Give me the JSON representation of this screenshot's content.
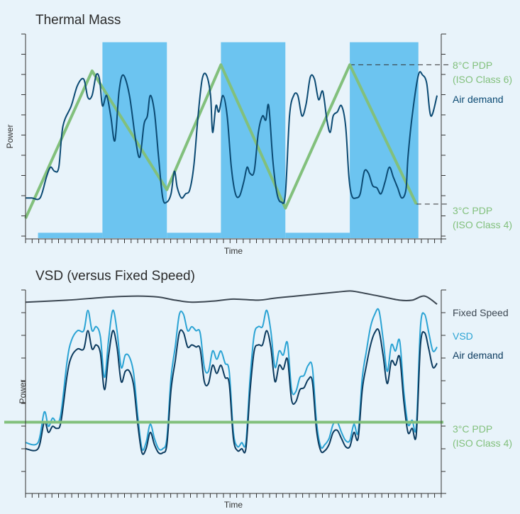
{
  "chart_data": [
    {
      "type": "area",
      "title": "Thermal Mass",
      "xlabel": "Time",
      "ylabel": "Power",
      "x_range": [
        0,
        100
      ],
      "y_range": [
        0,
        100
      ],
      "colors": {
        "blocks": "#6cc4f0",
        "air_demand": "#0b4a73",
        "dryer": "#82c07c",
        "guide": "#333333"
      },
      "blocks": [
        {
          "x0": 3,
          "x1": 18.5,
          "y": 3
        },
        {
          "x0": 18.5,
          "x1": 34,
          "y": 96
        },
        {
          "x0": 34,
          "x1": 47,
          "y": 3
        },
        {
          "x0": 47,
          "x1": 62.5,
          "y": 96
        },
        {
          "x0": 62.5,
          "x1": 78,
          "y": 3
        },
        {
          "x0": 78,
          "x1": 94.5,
          "y": 96
        }
      ],
      "dryer_series": {
        "name": "8°C PDP",
        "x": [
          0,
          16,
          34,
          47,
          62.5,
          78,
          94
        ],
        "y": [
          10,
          82,
          24,
          85,
          15,
          85,
          17
        ]
      },
      "air_demand_series": {
        "name": "Air demand",
        "x": [
          0,
          1.5,
          3.5,
          5,
          6,
          7,
          8,
          9,
          11,
          12.5,
          14,
          15,
          16,
          17,
          17.8,
          18.5,
          19.5,
          20.5,
          21.5,
          22.5,
          23.5,
          25,
          26.5,
          27.5,
          28.5,
          29.3,
          30,
          31,
          32,
          33,
          34,
          35,
          35.8,
          36.5,
          37.5,
          38.5,
          39.5,
          40.5,
          41.5,
          42.5,
          43.5,
          44.5,
          45,
          45.8,
          46.5,
          47.5,
          48.5,
          49.5,
          50.5,
          51.5,
          52.5,
          53.3,
          54,
          55,
          56,
          57,
          57.8,
          58.5,
          59.5,
          60.5,
          61.5,
          62.5,
          63.5,
          64.5,
          65.5,
          66.5,
          67.5,
          68.5,
          69.5,
          70.5,
          71.5,
          72.5,
          73.3,
          74,
          75,
          76,
          77,
          77.8,
          78.5,
          79.5,
          80.5,
          81.5,
          82.5,
          83.5,
          84.5,
          85.5,
          86.5,
          87.5,
          88.5,
          89.5,
          90.5,
          91.5,
          92,
          93,
          94.5,
          95.5,
          96.5,
          97.5,
          99
        ],
        "y": [
          20,
          20,
          20,
          30,
          35,
          33,
          35,
          55,
          65,
          75,
          78,
          69,
          70,
          80,
          78,
          65,
          70,
          60,
          48,
          72,
          80,
          70,
          48,
          40,
          56,
          60,
          70,
          62,
          40,
          20,
          18,
          22,
          33,
          25,
          20,
          22,
          24,
          36,
          60,
          78,
          80,
          70,
          52,
          65,
          62,
          70,
          60,
          35,
          22,
          21,
          28,
          35,
          32,
          33,
          52,
          60,
          58,
          65,
          38,
          22,
          18,
          22,
          60,
          70,
          70,
          60,
          66,
          79,
          78,
          68,
          72,
          58,
          52,
          60,
          62,
          65,
          55,
          30,
          21,
          20,
          22,
          33,
          32,
          26,
          25,
          22,
          28,
          35,
          30,
          25,
          20,
          24,
          40,
          60,
          80,
          80,
          76,
          60,
          70
        ]
      },
      "dashed_levels": [
        {
          "y": 85,
          "x_from": 78
        },
        {
          "y": 17,
          "x_from": 94
        }
      ],
      "legend_labels": [
        {
          "text": "8°C PDP",
          "color": "dryer"
        },
        {
          "text": "(ISO Class 6)",
          "color": "dryer"
        },
        {
          "text": "Air demand",
          "color": "air_demand"
        },
        {
          "text": "3°C PDP",
          "color": "dryer"
        },
        {
          "text": "(ISO Class 4)",
          "color": "dryer"
        }
      ]
    },
    {
      "type": "line",
      "title": "VSD (versus Fixed Speed)",
      "xlabel": "Time",
      "ylabel": "Power",
      "x_range": [
        0,
        100
      ],
      "y_range": [
        0,
        100
      ],
      "colors": {
        "fixed_speed": "#3c4752",
        "vsd": "#2aa3d4",
        "air_demand": "#0b3a5e",
        "dryer": "#82c07c"
      },
      "fixed_speed_series": {
        "name": "Fixed Speed",
        "x": [
          0,
          10,
          20,
          27,
          32,
          36,
          40,
          45,
          50,
          56,
          60,
          65,
          70,
          75,
          78,
          80,
          85,
          90,
          93,
          96,
          99
        ],
        "y": [
          94,
          95,
          96.5,
          97,
          96.5,
          95,
          94,
          94.5,
          95.5,
          95,
          96,
          97,
          98,
          99,
          99.5,
          99,
          97,
          95,
          95,
          97,
          93
        ]
      },
      "vsd_series": {
        "name": "VSD",
        "x": [
          0,
          3,
          4.5,
          5.5,
          6.5,
          7.5,
          8.5,
          10,
          11,
          12.5,
          14,
          15,
          16,
          17,
          18,
          19,
          20,
          21,
          22,
          23,
          24,
          25,
          26,
          27,
          28,
          29,
          30,
          31,
          32,
          33,
          34,
          35,
          36,
          37,
          38,
          39,
          40,
          41,
          42,
          43,
          44,
          45,
          46,
          47,
          48,
          49,
          50,
          51,
          52,
          53,
          54,
          55,
          56,
          57,
          58,
          59,
          60,
          61,
          62,
          63,
          64,
          65,
          66,
          67,
          68,
          69,
          70,
          71,
          72,
          73,
          74,
          75,
          76,
          77,
          78,
          79,
          80,
          81,
          82,
          83,
          84,
          85,
          86,
          87,
          88,
          89,
          90,
          91,
          92,
          93,
          94,
          95,
          96,
          97,
          98,
          99
        ],
        "y": [
          25,
          25,
          40,
          33,
          37,
          35,
          39,
          65,
          75,
          80,
          80,
          90,
          80,
          82,
          77,
          57,
          76,
          90,
          80,
          62,
          68,
          67,
          59,
          38,
          22,
          25,
          34,
          27,
          22,
          22,
          27,
          57,
          72,
          88,
          88,
          80,
          82,
          80,
          79,
          62,
          60,
          70,
          66,
          70,
          64,
          60,
          30,
          23,
          25,
          25,
          56,
          78,
          82,
          82,
          90,
          80,
          62,
          70,
          68,
          74,
          51,
          50,
          57,
          58,
          63,
          62,
          35,
          23,
          24,
          27,
          34,
          35,
          30,
          26,
          26,
          34,
          30,
          57,
          70,
          82,
          88,
          90,
          76,
          60,
          73,
          70,
          75,
          50,
          34,
          36,
          33,
          82,
          88,
          79,
          70,
          72
        ]
      },
      "air_demand_series": {
        "name": "Air demand",
        "x": [
          0,
          3,
          4.5,
          5.5,
          6.5,
          7.5,
          8.5,
          10,
          11,
          12.5,
          14,
          15,
          16,
          17,
          18,
          19,
          20,
          21,
          22,
          23,
          24,
          25,
          26,
          27,
          28,
          29,
          30,
          31,
          32,
          33,
          34,
          35,
          36,
          37,
          38,
          39,
          40,
          41,
          42,
          43,
          44,
          45,
          46,
          47,
          48,
          49,
          50,
          51,
          52,
          53,
          54,
          55,
          56,
          57,
          58,
          59,
          60,
          61,
          62,
          63,
          64,
          65,
          66,
          67,
          68,
          69,
          70,
          71,
          72,
          73,
          74,
          75,
          76,
          77,
          78,
          79,
          80,
          81,
          82,
          83,
          84,
          85,
          86,
          87,
          88,
          89,
          90,
          91,
          92,
          93,
          94,
          95,
          96,
          97,
          98,
          99
        ],
        "y": [
          22,
          22,
          35,
          30,
          33,
          32,
          35,
          58,
          67,
          71,
          71,
          80,
          71,
          73,
          69,
          51,
          68,
          80,
          72,
          55,
          60,
          60,
          53,
          34,
          20,
          22,
          30,
          24,
          20,
          20,
          24,
          51,
          65,
          79,
          79,
          72,
          73,
          72,
          71,
          55,
          54,
          63,
          59,
          63,
          57,
          54,
          27,
          21,
          22,
          22,
          50,
          70,
          73,
          73,
          80,
          72,
          55,
          63,
          61,
          66,
          46,
          45,
          51,
          52,
          56,
          55,
          31,
          21,
          21,
          24,
          30,
          31,
          27,
          23,
          23,
          30,
          27,
          51,
          63,
          73,
          79,
          80,
          68,
          54,
          65,
          63,
          67,
          45,
          30,
          32,
          29,
          73,
          79,
          71,
          62,
          64
        ]
      },
      "dryer_level": {
        "name": "3°C PDP",
        "y": 35
      },
      "legend_labels": [
        {
          "text": "Fixed Speed",
          "color": "fixed_speed"
        },
        {
          "text": "VSD",
          "color": "vsd"
        },
        {
          "text": "Air demand",
          "color": "air_demand"
        },
        {
          "text": "3°C PDP",
          "color": "dryer"
        },
        {
          "text": "(ISO Class 4)",
          "color": "dryer"
        }
      ]
    }
  ]
}
